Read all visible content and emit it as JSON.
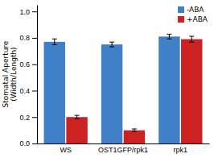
{
  "chart_data": {
    "type": "bar",
    "ylabel": "Stomatal Aperture\n(Width/Length)",
    "categories": [
      "WS",
      "OST1GFP/rpk1",
      "rpk1"
    ],
    "series": [
      {
        "name": "-ABA",
        "color": "#4080C8",
        "values": [
          0.77,
          0.75,
          0.81
        ],
        "errors": [
          0.022,
          0.018,
          0.018
        ]
      },
      {
        "name": "+ABA",
        "color": "#CC2222",
        "values": [
          0.2,
          0.1,
          0.79
        ],
        "errors": [
          0.013,
          0.01,
          0.022
        ]
      }
    ],
    "ylim": [
      0,
      1.05
    ],
    "yticks": [
      {
        "value": 0,
        "label": "0.0"
      },
      0.2,
      0.4,
      0.6,
      0.8,
      {
        "value": 1.0,
        "label": "1.0"
      }
    ],
    "legend": "upper right",
    "grid": false
  }
}
